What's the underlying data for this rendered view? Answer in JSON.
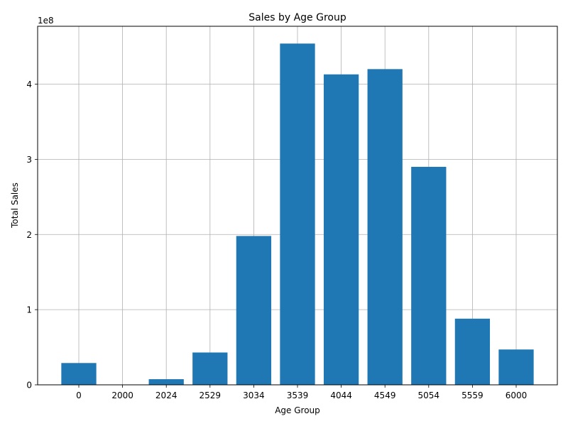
{
  "chart_data": {
    "type": "bar",
    "title": "Sales by Age Group",
    "xlabel": "Age Group",
    "ylabel": "Total Sales",
    "offset_label": "1e8",
    "categories": [
      "0",
      "2000",
      "2024",
      "2529",
      "3034",
      "3539",
      "4044",
      "4549",
      "5054",
      "5559",
      "6000"
    ],
    "values": [
      29000000,
      0,
      7500000,
      43000000,
      198000000,
      454000000,
      413000000,
      420000000,
      290000000,
      88000000,
      47000000
    ],
    "ylim": [
      0,
      477000000
    ],
    "yticks": [
      0,
      100000000,
      200000000,
      300000000,
      400000000
    ],
    "ytick_labels": [
      "0",
      "1",
      "2",
      "3",
      "4"
    ],
    "grid": true,
    "bar_color": "#1f77b4",
    "grid_color": "#b0b0b0"
  }
}
